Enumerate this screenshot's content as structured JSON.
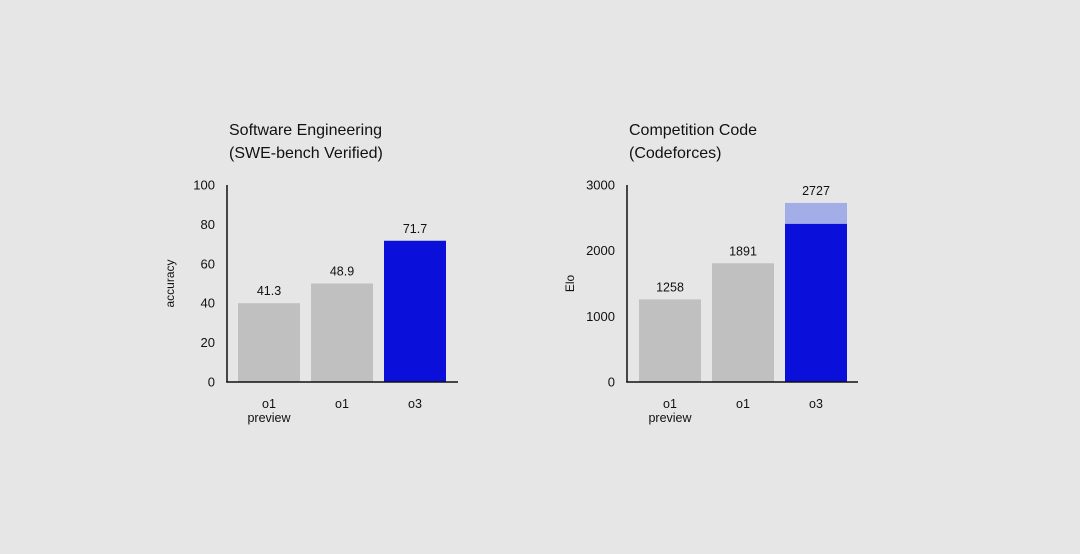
{
  "chart_data": [
    {
      "type": "bar",
      "title_lines": [
        "Software Engineering",
        "(SWE-bench Verified)"
      ],
      "ylabel": "accuracy",
      "ylim": [
        0,
        100
      ],
      "yticks": [
        0,
        20,
        40,
        60,
        80,
        100
      ],
      "categories": [
        [
          "o1",
          "preview"
        ],
        [
          "o1"
        ],
        [
          "o3"
        ]
      ],
      "values": [
        41.3,
        48.9,
        71.7
      ],
      "bar_value_shown": [
        40,
        50,
        71.7
      ],
      "data_labels": [
        "41.3",
        "48.9",
        "71.7"
      ],
      "colors": [
        "#c0c0c0",
        "#c0c0c0",
        "#0a10d9"
      ],
      "highlight_extension": null,
      "grid": false,
      "legend": "none"
    },
    {
      "type": "bar",
      "title_lines": [
        "Competition Code",
        "(Codeforces)"
      ],
      "ylabel": "Elo",
      "ylim": [
        0,
        3000
      ],
      "yticks": [
        0,
        1000,
        2000,
        3000
      ],
      "categories": [
        [
          "o1",
          "preview"
        ],
        [
          "o1"
        ],
        [
          "o3"
        ]
      ],
      "values": [
        1258,
        1891,
        2727
      ],
      "bar_value_shown": [
        1258,
        1808,
        2410
      ],
      "data_labels": [
        "1258",
        "1891",
        "2727"
      ],
      "colors": [
        "#c0c0c0",
        "#c0c0c0",
        "#0a10d9"
      ],
      "highlight_extension": {
        "index": 2,
        "from": 2410,
        "to": 2727,
        "color": "#a3aee8"
      },
      "grid": false,
      "legend": "none"
    }
  ]
}
